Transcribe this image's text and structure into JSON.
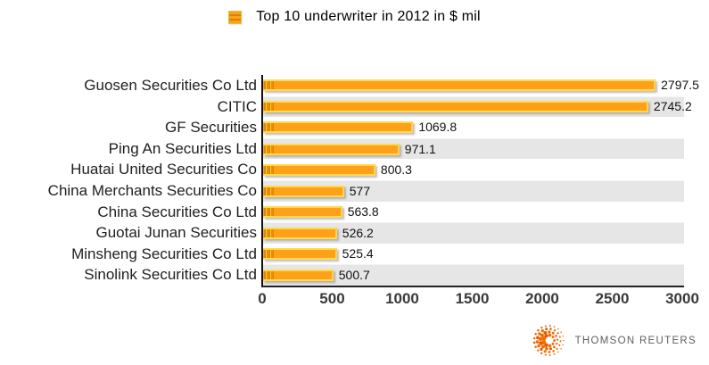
{
  "chart_data": {
    "type": "bar",
    "orientation": "horizontal",
    "title": "Top 10 underwriter in 2012 in $ mil",
    "categories": [
      "Guosen Securities Co Ltd",
      "CITIC",
      "GF Securities",
      "Ping An Securities Ltd",
      "Huatai United Securities Co",
      "China Merchants Securities Co",
      "China Securities Co Ltd",
      "Guotai Junan Securities",
      "Minsheng Securities Co Ltd",
      "Sinolink Securities Co Ltd"
    ],
    "values": [
      2797.5,
      2745.2,
      1069.8,
      971.1,
      800.3,
      577,
      563.8,
      526.2,
      525.4,
      500.7
    ],
    "value_labels": [
      "2797.5",
      "2745.2",
      "1069.8",
      "971.1",
      "800.3",
      "577",
      "563.8",
      "526.2",
      "525.4",
      "500.7"
    ],
    "xlim": [
      0,
      3000
    ],
    "xticks": [
      "0",
      "500",
      "1000",
      "1500",
      "2000",
      "2500",
      "3000"
    ],
    "grid": false,
    "legend_position": "top-center",
    "bar_color": "#ffa019",
    "bar_edge_color": "#ffd94e",
    "row_band_color": "#e6e6e6",
    "axis_color": "#111111"
  },
  "branding": {
    "logo": "thomson-reuters-sphere-icon",
    "text": "THOMSON REUTERS",
    "logo_color": "#ef6f00",
    "text_color": "#5e5e5e"
  }
}
